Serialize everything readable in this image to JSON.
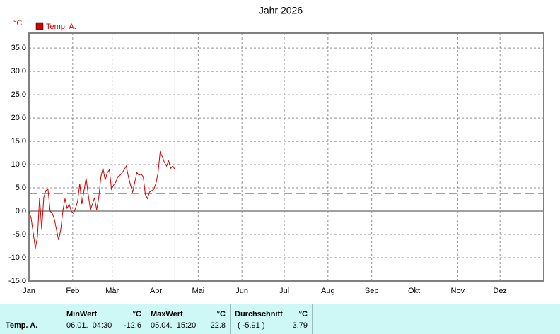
{
  "chart_data": {
    "type": "line",
    "title": "Jahr 2026",
    "y_unit": "°C",
    "series": [
      {
        "name": "Temp. A.",
        "color": "#d00000",
        "x": [
          0,
          1.5,
          3,
          4.5,
          6,
          7.5,
          9,
          10.5,
          12,
          13.5,
          15,
          16.5,
          18,
          19.5,
          21,
          22.5,
          24,
          25.5,
          27,
          28.5,
          30,
          31.5,
          33,
          34.5,
          36,
          37.5,
          39,
          40.5,
          42,
          43.5,
          45,
          46.5,
          48,
          49.5,
          51,
          52.5,
          54,
          55.5,
          57,
          58.5,
          60,
          61.5,
          63,
          64.5,
          66,
          67.5,
          69,
          70.5,
          72,
          73.5,
          75,
          76.5,
          78,
          79.5,
          81,
          82.5,
          84,
          85.5,
          87,
          88.5,
          90,
          91.5,
          93,
          94.5,
          96,
          97.5,
          99,
          100.5,
          102,
          103.5
        ],
        "values": [
          0,
          -1.5,
          -4.7,
          -8,
          -5.5,
          2.9,
          -4,
          2.9,
          4.4,
          4.7,
          0,
          -0.5,
          -1.7,
          -4,
          -6.2,
          -4,
          0,
          2.7,
          0.6,
          1.5,
          0,
          -0.5,
          0.6,
          2.1,
          5.9,
          1.5,
          4.4,
          7.1,
          3.6,
          0.3,
          1.5,
          2.9,
          0.3,
          2.9,
          7.4,
          9.2,
          6.7,
          8.2,
          8.9,
          4.7,
          5.6,
          6.2,
          7.4,
          7.7,
          8.2,
          8.9,
          9.7,
          7.4,
          5.6,
          4.1,
          6.2,
          8.3,
          7.7,
          8,
          7.4,
          3.6,
          2.7,
          4.1,
          4.4,
          4.7,
          5.9,
          8.2,
          12.7,
          11.7,
          10.5,
          9.7,
          10.8,
          9.2,
          9.7,
          8.9
        ]
      }
    ],
    "xlim": [
      0,
      365
    ],
    "xticks": [
      {
        "value": 0,
        "label": "Jan"
      },
      {
        "value": 31,
        "label": "Feb"
      },
      {
        "value": 59,
        "label": "Mär"
      },
      {
        "value": 90,
        "label": "Apr"
      },
      {
        "value": 120,
        "label": "Mai"
      },
      {
        "value": 151,
        "label": "Jun"
      },
      {
        "value": 181,
        "label": "Jul"
      },
      {
        "value": 212,
        "label": "Aug"
      },
      {
        "value": 243,
        "label": "Sep"
      },
      {
        "value": 273,
        "label": "Okt"
      },
      {
        "value": 304,
        "label": "Nov"
      },
      {
        "value": 334,
        "label": "Dez"
      }
    ],
    "ylim": [
      -15,
      38.2
    ],
    "yticks": [
      {
        "value": -15,
        "label": "-15.0"
      },
      {
        "value": -10,
        "label": "-10.0"
      },
      {
        "value": -5,
        "label": "-5.0"
      },
      {
        "value": 0,
        "label": "0.0"
      },
      {
        "value": 5,
        "label": "5.0"
      },
      {
        "value": 10,
        "label": "10.0"
      },
      {
        "value": 15,
        "label": "15.0"
      },
      {
        "value": 20,
        "label": "20.0"
      },
      {
        "value": 25,
        "label": "25.0"
      },
      {
        "value": 30,
        "label": "30.0"
      },
      {
        "value": 35,
        "label": "35.0"
      }
    ],
    "grid": true
  },
  "table": {
    "row_name": "Temp. A.",
    "min": {
      "header": "MinWert",
      "unit": "°C",
      "time": "06.01.  04:30",
      "value": -12.6
    },
    "max": {
      "header": "MaxWert",
      "unit": "°C",
      "time": "05.04.  15:20",
      "value": 22.8
    },
    "avg": {
      "header": "Durchschnitt",
      "unit": "°C",
      "note": "( -5.91 )",
      "value": 3.79
    }
  }
}
